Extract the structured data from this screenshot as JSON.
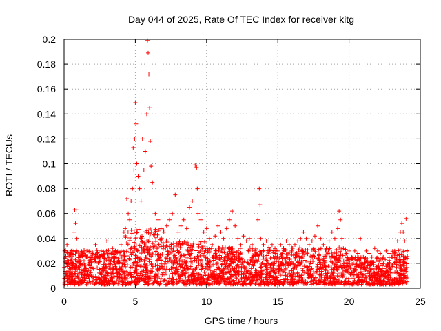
{
  "chart_data": {
    "type": "scatter",
    "title": "Day 044 of 2025, Rate Of TEC Index for receiver kitg",
    "xlabel": "GPS time / hours",
    "ylabel": "ROTI / TECUs",
    "xlim": [
      0,
      25
    ],
    "ylim": [
      0,
      0.2
    ],
    "xticks": [
      0,
      5,
      10,
      15,
      20,
      25
    ],
    "xtick_labels": [
      "0",
      "5",
      "10",
      "15",
      "20",
      "25"
    ],
    "yticks": [
      0,
      0.02,
      0.04,
      0.06,
      0.08,
      0.1,
      0.12,
      0.14,
      0.16,
      0.18,
      0.2
    ],
    "ytick_labels": [
      "0",
      "0.02",
      "0.04",
      "0.06",
      "0.08",
      "0.1",
      "0.12",
      "0.14",
      "0.16",
      "0.18",
      "0.2"
    ],
    "grid": true,
    "marker": "+",
    "color": "#ff0000",
    "series": [
      {
        "name": "ROTI",
        "points": [
          [
            0.1,
            0.012
          ],
          [
            0.2,
            0.035
          ],
          [
            0.3,
            0.02
          ],
          [
            0.5,
            0.03
          ],
          [
            0.6,
            0.018
          ],
          [
            0.7,
            0.045
          ],
          [
            0.75,
            0.063
          ],
          [
            0.8,
            0.052
          ],
          [
            0.85,
            0.063
          ],
          [
            0.9,
            0.04
          ],
          [
            1.0,
            0.025
          ],
          [
            1.2,
            0.015
          ],
          [
            1.4,
            0.022
          ],
          [
            1.6,
            0.03
          ],
          [
            1.8,
            0.018
          ],
          [
            2.0,
            0.028
          ],
          [
            2.2,
            0.035
          ],
          [
            2.4,
            0.02
          ],
          [
            2.6,
            0.03
          ],
          [
            2.8,
            0.025
          ],
          [
            3.0,
            0.038
          ],
          [
            3.2,
            0.028
          ],
          [
            3.4,
            0.032
          ],
          [
            3.6,
            0.03
          ],
          [
            3.8,
            0.022
          ],
          [
            4.0,
            0.035
          ],
          [
            4.2,
            0.045
          ],
          [
            4.4,
            0.072
          ],
          [
            4.5,
            0.06
          ],
          [
            4.6,
            0.055
          ],
          [
            4.7,
            0.07
          ],
          [
            4.8,
            0.08
          ],
          [
            4.85,
            0.113
          ],
          [
            4.9,
            0.095
          ],
          [
            4.95,
            0.12
          ],
          [
            5.0,
            0.149
          ],
          [
            5.05,
            0.132
          ],
          [
            5.1,
            0.1
          ],
          [
            5.2,
            0.09
          ],
          [
            5.3,
            0.08
          ],
          [
            5.4,
            0.07
          ],
          [
            5.5,
            0.12
          ],
          [
            5.6,
            0.095
          ],
          [
            5.7,
            0.11
          ],
          [
            5.8,
            0.14
          ],
          [
            5.85,
            0.199
          ],
          [
            5.9,
            0.189
          ],
          [
            5.95,
            0.172
          ],
          [
            6.0,
            0.145
          ],
          [
            6.05,
            0.118
          ],
          [
            6.1,
            0.098
          ],
          [
            6.2,
            0.085
          ],
          [
            6.4,
            0.06
          ],
          [
            6.6,
            0.055
          ],
          [
            6.8,
            0.048
          ],
          [
            7.0,
            0.045
          ],
          [
            7.2,
            0.05
          ],
          [
            7.4,
            0.055
          ],
          [
            7.6,
            0.06
          ],
          [
            7.8,
            0.075
          ],
          [
            8.0,
            0.045
          ],
          [
            8.2,
            0.05
          ],
          [
            8.4,
            0.055
          ],
          [
            8.6,
            0.048
          ],
          [
            8.8,
            0.065
          ],
          [
            9.0,
            0.07
          ],
          [
            9.2,
            0.099
          ],
          [
            9.3,
            0.097
          ],
          [
            9.35,
            0.08
          ],
          [
            9.4,
            0.06
          ],
          [
            9.6,
            0.055
          ],
          [
            9.8,
            0.045
          ],
          [
            10.0,
            0.048
          ],
          [
            10.2,
            0.04
          ],
          [
            10.4,
            0.035
          ],
          [
            10.6,
            0.042
          ],
          [
            10.8,
            0.05
          ],
          [
            11.0,
            0.045
          ],
          [
            11.2,
            0.04
          ],
          [
            11.4,
            0.048
          ],
          [
            11.6,
            0.055
          ],
          [
            11.8,
            0.062
          ],
          [
            12.0,
            0.05
          ],
          [
            12.2,
            0.04
          ],
          [
            12.4,
            0.035
          ],
          [
            12.6,
            0.042
          ],
          [
            12.8,
            0.038
          ],
          [
            13.0,
            0.04
          ],
          [
            13.2,
            0.035
          ],
          [
            13.4,
            0.03
          ],
          [
            13.6,
            0.055
          ],
          [
            13.7,
            0.08
          ],
          [
            13.75,
            0.067
          ],
          [
            13.8,
            0.04
          ],
          [
            14.0,
            0.035
          ],
          [
            14.2,
            0.038
          ],
          [
            14.4,
            0.03
          ],
          [
            14.6,
            0.035
          ],
          [
            14.8,
            0.032
          ],
          [
            15.0,
            0.03
          ],
          [
            15.2,
            0.035
          ],
          [
            15.4,
            0.032
          ],
          [
            15.6,
            0.038
          ],
          [
            15.8,
            0.035
          ],
          [
            16.0,
            0.03
          ],
          [
            16.2,
            0.035
          ],
          [
            16.4,
            0.038
          ],
          [
            16.6,
            0.04
          ],
          [
            16.8,
            0.045
          ],
          [
            17.0,
            0.04
          ],
          [
            17.2,
            0.035
          ],
          [
            17.4,
            0.038
          ],
          [
            17.6,
            0.042
          ],
          [
            17.8,
            0.05
          ],
          [
            18.0,
            0.04
          ],
          [
            18.2,
            0.035
          ],
          [
            18.4,
            0.032
          ],
          [
            18.6,
            0.038
          ],
          [
            18.8,
            0.045
          ],
          [
            19.0,
            0.04
          ],
          [
            19.2,
            0.048
          ],
          [
            19.3,
            0.062
          ],
          [
            19.4,
            0.055
          ],
          [
            19.5,
            0.04
          ],
          [
            19.6,
            0.032
          ],
          [
            19.8,
            0.028
          ],
          [
            20.0,
            0.03
          ],
          [
            20.2,
            0.025
          ],
          [
            20.4,
            0.03
          ],
          [
            20.6,
            0.028
          ],
          [
            20.8,
            0.04
          ],
          [
            21.0,
            0.025
          ],
          [
            21.2,
            0.03
          ],
          [
            21.4,
            0.028
          ],
          [
            21.6,
            0.025
          ],
          [
            21.8,
            0.032
          ],
          [
            22.0,
            0.03
          ],
          [
            22.2,
            0.028
          ],
          [
            22.4,
            0.025
          ],
          [
            22.6,
            0.03
          ],
          [
            22.8,
            0.028
          ],
          [
            23.0,
            0.025
          ],
          [
            23.2,
            0.03
          ],
          [
            23.4,
            0.038
          ],
          [
            23.6,
            0.045
          ],
          [
            23.7,
            0.052
          ],
          [
            23.8,
            0.045
          ],
          [
            23.9,
            0.038
          ],
          [
            24.0,
            0.056
          ]
        ]
      }
    ]
  }
}
